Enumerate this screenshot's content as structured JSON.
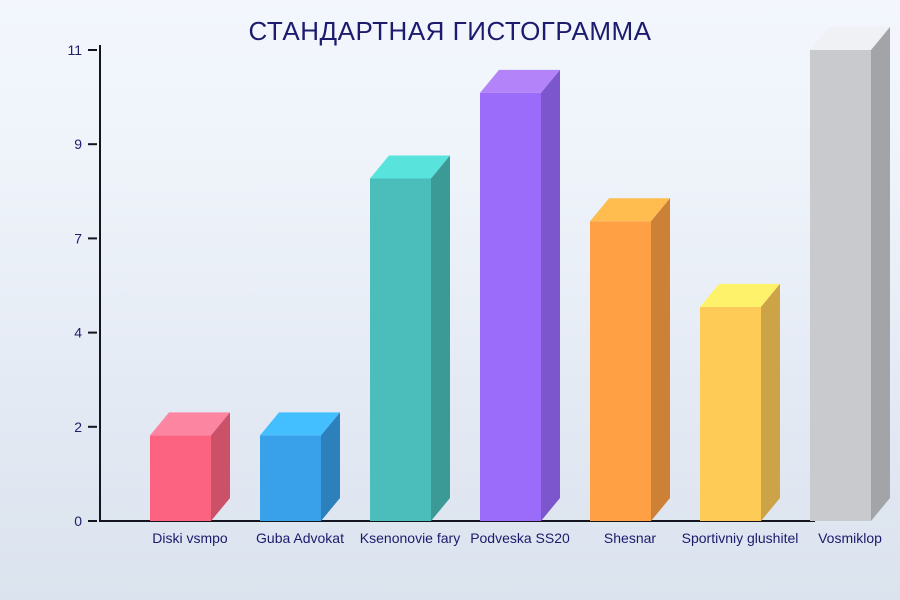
{
  "chart_data": {
    "type": "bar",
    "style": "3d-column",
    "title": "СТАНДАРТНАЯ ГИСТОГРАММА",
    "xlabel": "",
    "ylabel": "",
    "ylim": [
      0,
      11
    ],
    "grid": false,
    "legend": false,
    "categories": [
      "Diski vsmpo",
      "Guba Advokat",
      "Ksenonovie fary",
      "Podveska SS20",
      "Shesnar",
      "Sportivniy glushitel",
      "Vosmiklop"
    ],
    "values": [
      2,
      2,
      8,
      10,
      7,
      5,
      11
    ],
    "yticks": [
      {
        "pos": 0,
        "label": "0"
      },
      {
        "pos": 2.2,
        "label": "2"
      },
      {
        "pos": 4.4,
        "label": "4"
      },
      {
        "pos": 6.6,
        "label": "7"
      },
      {
        "pos": 8.8,
        "label": "9"
      },
      {
        "pos": 11,
        "label": "11"
      }
    ],
    "colors": [
      {
        "front": "#fb6380",
        "top": "#fc86a2",
        "side": "#cb5168"
      },
      {
        "front": "#38a1e9",
        "top": "#43bfff",
        "side": "#2c81bc"
      },
      {
        "front": "#4bbebb",
        "top": "#58e4dd",
        "side": "#3b9a96"
      },
      {
        "front": "#9a6cf9",
        "top": "#b383f9",
        "side": "#7c56cc"
      },
      {
        "front": "#fea043",
        "top": "#ffbd4f",
        "side": "#cd8137"
      },
      {
        "front": "#fecb57",
        "top": "#fdf269",
        "side": "#cda348"
      },
      {
        "front": "#c9cacd",
        "top": "#eff1f4",
        "side": "#a3a4a8"
      }
    ],
    "axis_color": "#15151f",
    "text_color": "#1c1b6e"
  }
}
